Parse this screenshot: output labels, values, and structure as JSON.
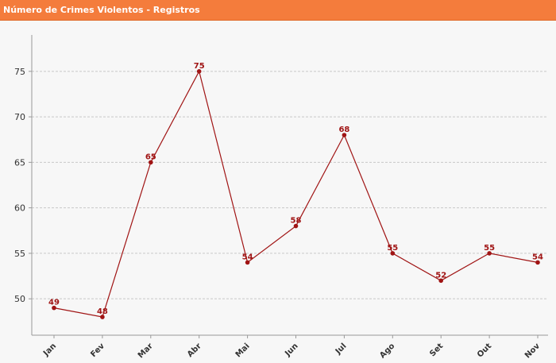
{
  "header": {
    "title": "Número de Crimes Violentos - Registros"
  },
  "chart_data": {
    "type": "line",
    "title": "Número de Crimes Violentos - Registros",
    "xlabel": "",
    "ylabel": "",
    "categories": [
      "Jan",
      "Fev",
      "Mar",
      "Abr",
      "Mai",
      "Jun",
      "Jul",
      "Ago",
      "Set",
      "Out",
      "Nov"
    ],
    "series": [
      {
        "values": [
          49,
          48,
          65,
          75,
          54,
          58,
          68,
          55,
          52,
          55,
          54
        ]
      }
    ],
    "yticks": [
      50,
      55,
      60,
      65,
      70,
      75
    ],
    "ylim": [
      46,
      79
    ],
    "grid": true,
    "legend": "none",
    "colors": {
      "line": "#a01414",
      "grid": "#c8c8c8",
      "axis": "#999999"
    }
  }
}
